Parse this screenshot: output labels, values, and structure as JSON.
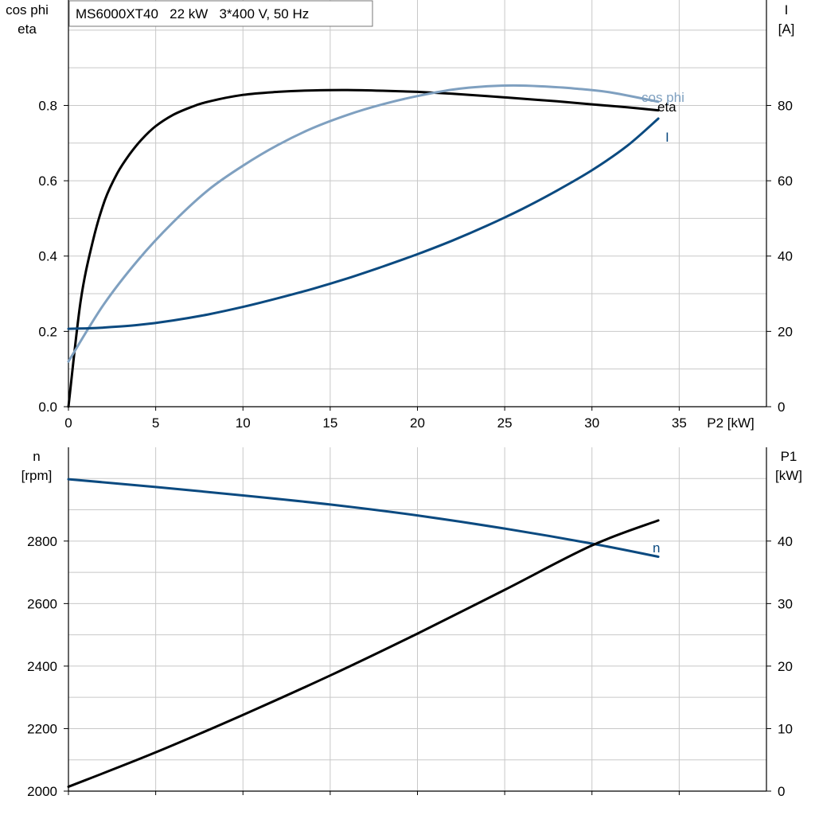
{
  "info_box": "MS6000XT40   22 kW   3*400 V, 50 Hz",
  "colors": {
    "eta": "#000000",
    "cos_phi": "#7fa0c0",
    "current": "#0b4a80",
    "speed": "#0b4a80",
    "p1": "#000000",
    "grid": "#c8c8c8"
  },
  "chart_data": [
    {
      "type": "line",
      "x_axis": {
        "label": "P2 [kW]",
        "range": [
          0,
          40
        ],
        "ticks": [
          0,
          5,
          10,
          15,
          20,
          25,
          30,
          35
        ]
      },
      "y_left": {
        "label_line1": "cos phi",
        "label_line2": "eta",
        "range": [
          0,
          1.08
        ],
        "ticks": [
          0.0,
          0.2,
          0.4,
          0.6,
          0.8
        ],
        "tick_labels": [
          "0.0",
          "0.2",
          "0.4",
          "0.6",
          "0.8"
        ]
      },
      "y_right": {
        "label_line1": "I",
        "label_line2": "[A]",
        "range": [
          0,
          108
        ],
        "ticks": [
          0,
          20,
          40,
          60,
          80
        ],
        "tick_labels": [
          "0",
          "20",
          "40",
          "60",
          "80"
        ]
      },
      "grid": true,
      "series": [
        {
          "name": "eta",
          "axis": "left",
          "color": "eta",
          "x": [
            0,
            0.7,
            1.4,
            2.1,
            2.8,
            3.5,
            4.2,
            5,
            6,
            7,
            8,
            10,
            12,
            14,
            16,
            18,
            20,
            22,
            24,
            26,
            28,
            30,
            32,
            33.8
          ],
          "y": [
            0,
            0.28,
            0.44,
            0.55,
            0.62,
            0.67,
            0.71,
            0.745,
            0.775,
            0.795,
            0.81,
            0.828,
            0.836,
            0.84,
            0.841,
            0.839,
            0.836,
            0.831,
            0.825,
            0.818,
            0.811,
            0.803,
            0.795,
            0.787
          ]
        },
        {
          "name": "cos phi",
          "axis": "left",
          "color": "cos_phi",
          "x": [
            0,
            2,
            4,
            6,
            8,
            10,
            12,
            14,
            16,
            18,
            20,
            22,
            24,
            25.5,
            27,
            29,
            31,
            33.8
          ],
          "y": [
            0.12,
            0.27,
            0.39,
            0.49,
            0.575,
            0.64,
            0.695,
            0.74,
            0.775,
            0.803,
            0.825,
            0.842,
            0.851,
            0.853,
            0.851,
            0.845,
            0.835,
            0.81
          ]
        },
        {
          "name": "I",
          "axis": "right",
          "color": "current",
          "x": [
            0,
            1,
            2,
            4,
            6,
            8,
            10,
            12,
            14,
            16,
            18,
            20,
            22,
            24,
            26,
            28,
            30,
            32,
            33.8
          ],
          "y": [
            20.7,
            20.8,
            21.0,
            21.7,
            22.9,
            24.5,
            26.5,
            28.8,
            31.3,
            34.1,
            37.2,
            40.5,
            44.1,
            48.1,
            52.5,
            57.4,
            62.8,
            69.2,
            76.5
          ]
        }
      ]
    },
    {
      "type": "line",
      "x_axis": {
        "label": "",
        "range": [
          0,
          40
        ],
        "ticks": [
          0,
          5,
          10,
          15,
          20,
          25,
          30,
          35
        ]
      },
      "y_left": {
        "label_line1": "n",
        "label_line2": "[rpm]",
        "range": [
          2000,
          3100
        ],
        "ticks": [
          2000,
          2200,
          2400,
          2600,
          2800
        ],
        "tick_labels": [
          "2000",
          "2200",
          "2400",
          "2600",
          "2800"
        ]
      },
      "y_right": {
        "label_line1": "P1",
        "label_line2": "[kW]",
        "range": [
          0,
          55
        ],
        "ticks": [
          0,
          10,
          20,
          30,
          40
        ],
        "tick_labels": [
          "0",
          "10",
          "20",
          "30",
          "40"
        ]
      },
      "grid": true,
      "series": [
        {
          "name": "n",
          "axis": "left",
          "color": "speed",
          "x": [
            0,
            5,
            10,
            15,
            20,
            25,
            30,
            33.8
          ],
          "y": [
            2998,
            2973,
            2946,
            2917,
            2882,
            2840,
            2792,
            2750
          ]
        },
        {
          "name": "",
          "axis": "right",
          "color": "p1",
          "x": [
            0,
            5,
            10,
            15,
            20,
            25,
            30,
            33.8
          ],
          "y": [
            0.7,
            6.2,
            12.2,
            18.5,
            25.2,
            32.2,
            39.3,
            43.3
          ]
        }
      ]
    }
  ]
}
